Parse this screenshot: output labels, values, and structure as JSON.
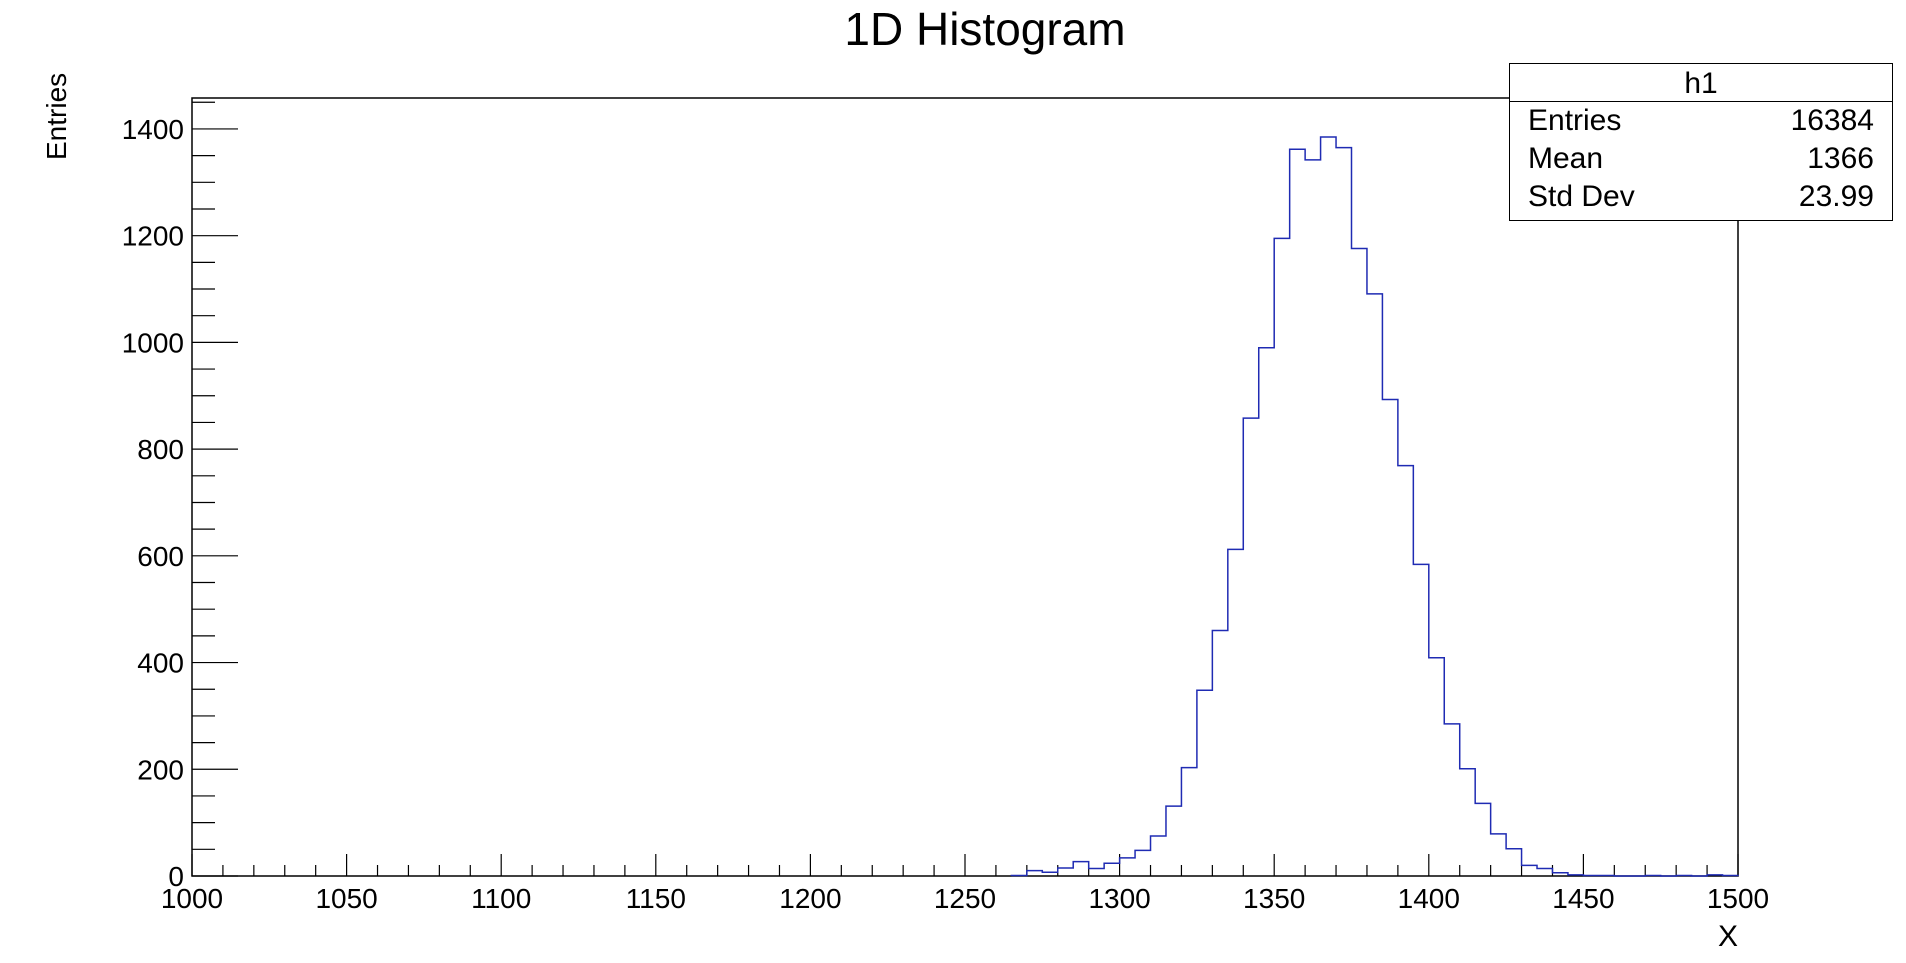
{
  "chart_data": {
    "type": "histogram",
    "title": "1D Histogram",
    "xlabel": "X",
    "ylabel": "Entries",
    "xlim": [
      1000,
      1500
    ],
    "ylim": [
      0,
      1458
    ],
    "x_ticks": [
      1000,
      1050,
      1100,
      1150,
      1200,
      1250,
      1300,
      1350,
      1400,
      1450,
      1500
    ],
    "y_ticks": [
      0,
      200,
      400,
      600,
      800,
      1000,
      1200,
      1400
    ],
    "bin_edges_start": 1265,
    "bin_width": 5,
    "counts": [
      1,
      10,
      7,
      15,
      27,
      14,
      24,
      34,
      48,
      75,
      131,
      203,
      348,
      460,
      612,
      858,
      990,
      1195,
      1362,
      1342,
      1385,
      1365,
      1176,
      1091,
      893,
      769,
      584,
      409,
      285,
      201,
      136,
      79,
      51,
      20,
      14,
      6,
      2,
      1,
      1,
      0,
      0,
      1,
      0,
      1,
      0,
      2,
      1
    ],
    "line_color": "#1f2bb3",
    "grid": false,
    "legend": "none",
    "stats_box": {
      "title": "h1",
      "rows": [
        {
          "label": "Entries",
          "value": "16384"
        },
        {
          "label": "Mean",
          "value": "1366"
        },
        {
          "label": "Std Dev",
          "value": "23.99"
        }
      ]
    }
  }
}
